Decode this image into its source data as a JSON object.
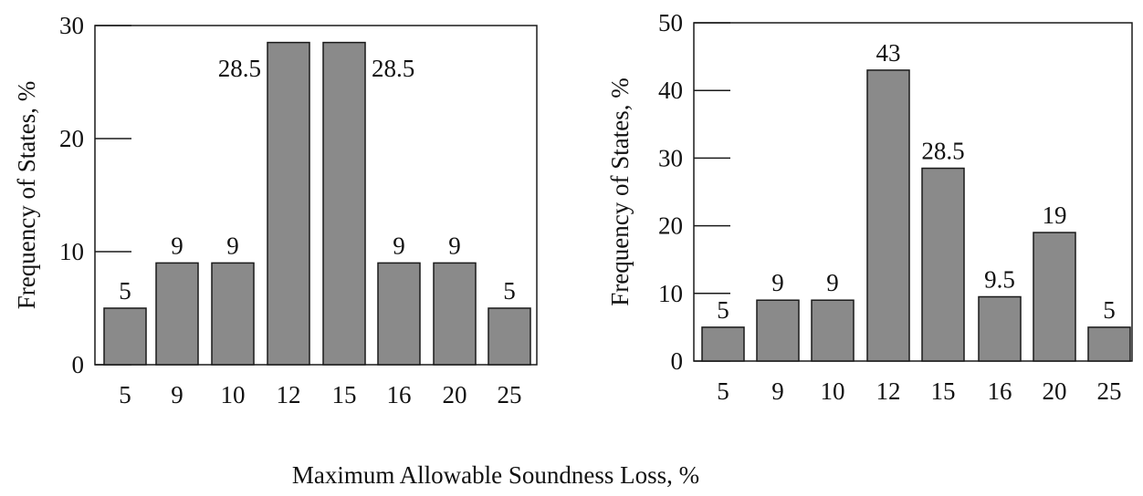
{
  "figure": {
    "shared_xlabel": "Maximum Allowable Soundness Loss, %"
  },
  "chart_data": [
    {
      "type": "bar",
      "title": "",
      "xlabel": "",
      "ylabel": "Frequency of States, %",
      "categories": [
        "5",
        "9",
        "10",
        "12",
        "15",
        "16",
        "20",
        "25"
      ],
      "values": [
        5,
        9,
        9,
        28.5,
        28.5,
        9,
        9,
        5
      ],
      "data_labels": [
        "5",
        "9",
        "9",
        "28.5",
        "28.5",
        "9",
        "9",
        "5"
      ],
      "ylim": [
        0,
        30
      ],
      "yticks": [
        0,
        10,
        20,
        30
      ],
      "grid": false,
      "bar_color": "#8a8a8a"
    },
    {
      "type": "bar",
      "title": "",
      "xlabel": "",
      "ylabel": "Frequency of States, %",
      "categories": [
        "5",
        "9",
        "10",
        "12",
        "15",
        "16",
        "20",
        "25"
      ],
      "values": [
        5,
        9,
        9,
        43,
        28.5,
        9.5,
        19,
        5
      ],
      "data_labels": [
        "5",
        "9",
        "9",
        "43",
        "28.5",
        "9.5",
        "19",
        "5"
      ],
      "ylim": [
        0,
        50
      ],
      "yticks": [
        0,
        10,
        20,
        30,
        40,
        50
      ],
      "grid": false,
      "bar_color": "#8a8a8a"
    }
  ]
}
